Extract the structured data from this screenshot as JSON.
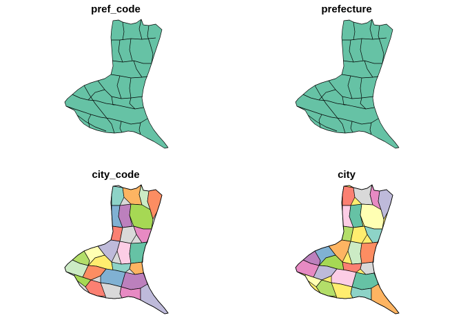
{
  "panels": [
    {
      "title": "pref_code",
      "mode": "single"
    },
    {
      "title": "prefecture",
      "mode": "single"
    },
    {
      "title": "city_code",
      "mode": "palette",
      "shift": 0
    },
    {
      "title": "city",
      "mode": "palette",
      "shift": 3
    }
  ],
  "colors": {
    "single_fill": "#66C2A5",
    "border": "#000000",
    "background": "#FFFFFF",
    "palette": [
      "#8DD3C7",
      "#FFFFB3",
      "#BEBADA",
      "#FB8072",
      "#80B1D3",
      "#FDB462",
      "#B3DE69",
      "#FCCDE5",
      "#D9D9D9",
      "#BC80BD",
      "#CCEBC5",
      "#FFED6F",
      "#66C2A5",
      "#E78AC3",
      "#A6D854",
      "#FC8D62"
    ]
  }
}
